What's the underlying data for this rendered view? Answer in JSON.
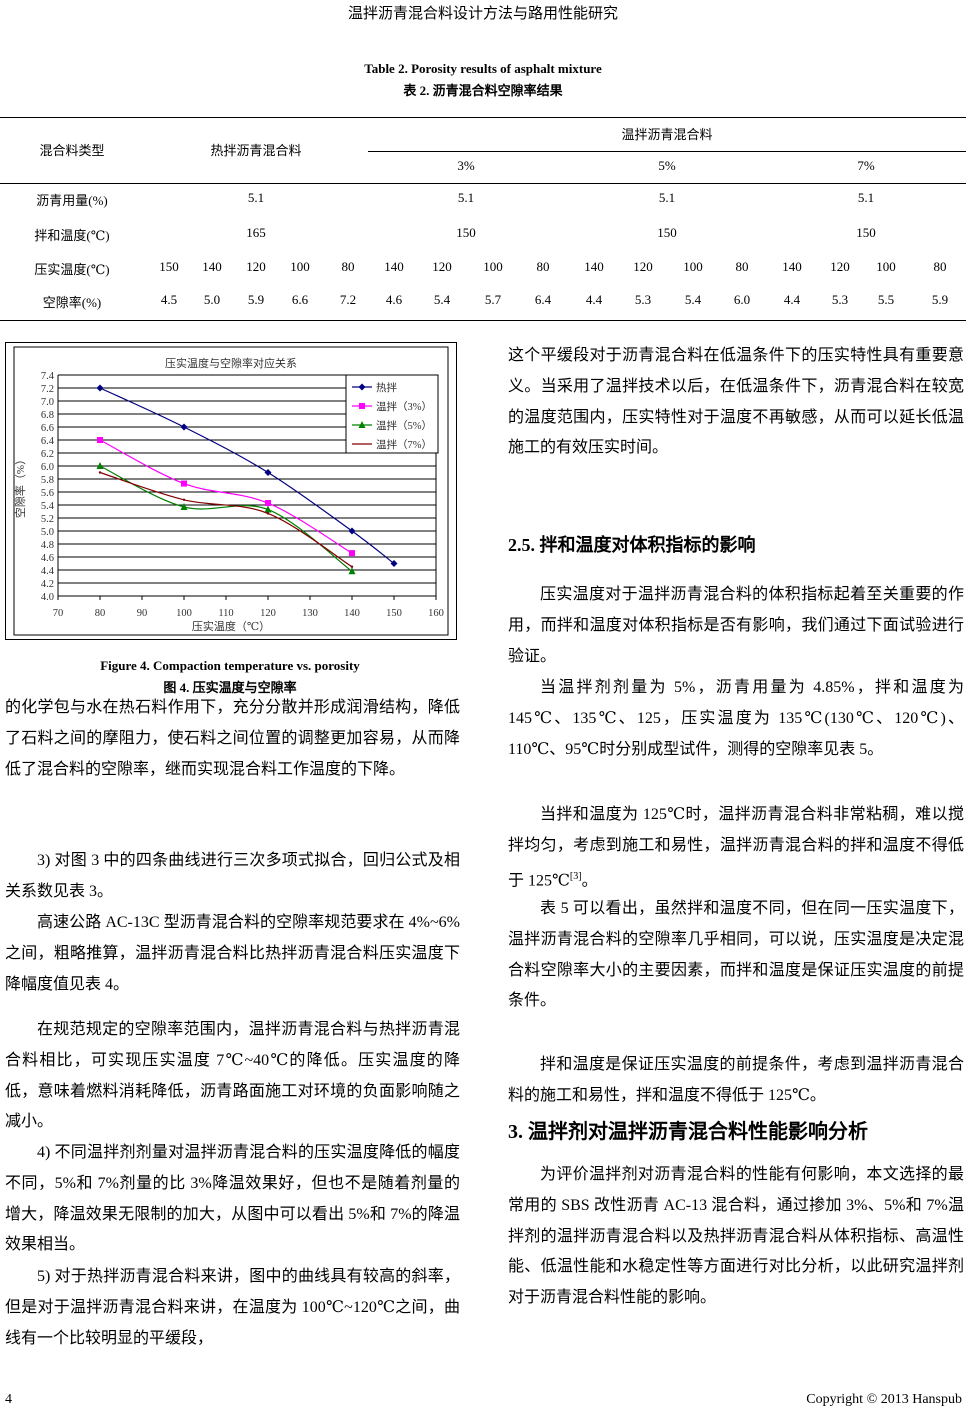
{
  "running_head": "温拌沥青混合料设计方法与路用性能研究",
  "table": {
    "caption_en": "Table 2. Porosity results of asphalt mixture",
    "caption_zh": "表 2.  沥青混合料空隙率结果",
    "header": {
      "type_label": "混合料类型",
      "hot_label": "热拌沥青混合料",
      "warm_label": "温拌沥青混合料",
      "warm_doses": [
        "3%",
        "5%",
        "7%"
      ]
    },
    "rows": {
      "asphalt": {
        "label": "沥青用量(%)",
        "values": [
          "5.1",
          "5.1",
          "5.1",
          "5.1"
        ]
      },
      "mix_temp": {
        "label": "拌和温度(℃)",
        "values": [
          "165",
          "150",
          "150",
          "150"
        ]
      },
      "compact_temp": {
        "label": "压实温度(℃)",
        "values": [
          "150",
          "140",
          "120",
          "100",
          "80",
          "140",
          "120",
          "100",
          "80",
          "140",
          "120",
          "100",
          "80",
          "140",
          "120",
          "100",
          "80"
        ]
      },
      "porosity": {
        "label": "空隙率(%)",
        "values": [
          "4.5",
          "5.0",
          "5.9",
          "6.6",
          "7.2",
          "4.6",
          "5.4",
          "5.7",
          "6.4",
          "4.4",
          "5.3",
          "5.4",
          "6.0",
          "4.4",
          "5.3",
          "5.5",
          "5.9"
        ]
      }
    }
  },
  "chart_data": {
    "type": "line",
    "title": "压实温度与空隙率对应关系",
    "xlabel": "压实温度（℃）",
    "ylabel": "空隙率（%）",
    "xlim": [
      70,
      160
    ],
    "ylim": [
      4.0,
      7.4
    ],
    "xticks": [
      "70",
      "80",
      "90",
      "100",
      "110",
      "120",
      "130",
      "140",
      "150",
      "160"
    ],
    "yticks": [
      "4.0",
      "4.2",
      "4.4",
      "4.6",
      "4.8",
      "5.0",
      "5.2",
      "5.4",
      "5.6",
      "5.8",
      "6.0",
      "6.2",
      "6.4",
      "6.6",
      "6.8",
      "7.0",
      "7.2",
      "7.4"
    ],
    "grid": "horizontal",
    "legend_position": "top-right",
    "series": [
      {
        "name": "热拌",
        "color": "#000080",
        "marker": "diamond",
        "x": [
          80,
          100,
          120,
          140,
          150
        ],
        "y": [
          7.2,
          6.6,
          5.9,
          5.0,
          4.5
        ]
      },
      {
        "name": "温拌（3%）",
        "color": "#ff00ff",
        "marker": "square",
        "x": [
          80,
          100,
          120,
          140
        ],
        "y": [
          6.4,
          5.73,
          5.43,
          4.66
        ]
      },
      {
        "name": "温拌（5%）",
        "color": "#008000",
        "marker": "triangle",
        "x": [
          80,
          100,
          120,
          140
        ],
        "y": [
          6.0,
          5.37,
          5.33,
          4.38
        ]
      },
      {
        "name": "温拌（7%）",
        "color": "#800000",
        "marker": "none",
        "x": [
          80,
          100,
          120,
          140
        ],
        "y": [
          5.9,
          5.48,
          5.27,
          4.45
        ]
      }
    ]
  },
  "figure": {
    "caption_en": "Figure 4. Compaction temperature vs. porosity",
    "caption_zh": "图 4.  压实温度与空隙率"
  },
  "left_column": [
    "的化学包与水在热石料作用下，充分分散并形成润滑结构，降低了石料之间的摩阻力，使石料之间位置的调整更加容易，从而降低了混合料的空隙率，继而实现混合料工作温度的下降。",
    "3)  对图 3 中的四条曲线进行三次多项式拟合，回归公式及相关系数见表 3。",
    "高速公路 AC-13C 型沥青混合料的空隙率规范要求在  4%~6%之间，粗略推算，温拌沥青混合料比热拌沥青混合料压实温度下降幅度值见表 4。",
    "在规范规定的空隙率范围内，温拌沥青混合料与热拌沥青混合料相比，可实现压实温度 7℃~40℃的降低。压实温度的降低，意味着燃料消耗降低，沥青路面施工对环境的负面影响随之减小。",
    "4)  不同温拌剂剂量对温拌沥青混合料的压实温度降低的幅度不同，5%和  7%剂量的比  3%降温效果好，但也不是随着剂量的增大，降温效果无限制的加大，从图中可以看出 5%和 7%的降温效果相当。",
    "5)  对于热拌沥青混合料来讲，图中的曲线具有较高的斜率，但是对于温拌沥青混合料来讲，在温度为 100℃~120℃之间，曲线有一个比较明显的平缓段，"
  ],
  "right_column": {
    "p0": "这个平缓段对于沥青混合料在低温条件下的压实特性具有重要意义。当采用了温拌技术以后，在低温条件下，沥青混合料在较宽的温度范围内，压实特性对于温度不再敏感，从而可以延长低温施工的有效压实时间。",
    "heading_25": "2.5.  拌和温度对体积指标的影响",
    "p1": "压实温度对于温拌沥青混合料的体积指标起着至关重要的作用，而拌和温度对体积指标是否有影响，我们通过下面试验进行验证。",
    "p2": "当温拌剂剂量为 5%，沥青用量为 4.85%，拌和温度为 145℃、135℃、125，压实温度为 135℃(130℃、120℃)、110℃、95℃时分别成型试件，测得的空隙率见表 5。",
    "p3": "当拌和温度为  125℃时，温拌沥青混合料非常粘稠，难以搅拌均匀，考虑到施工和易性，温拌沥青混合料的拌和温度不得低于 125℃",
    "p3_ref": "[3]",
    "p3_end": "。",
    "p4": "表 5 可以看出，虽然拌和温度不同，但在同一压实温度下，温拌沥青混合料的空隙率几乎相同，可以说，压实温度是决定混合料空隙率大小的主要因素，而拌和温度是保证压实温度的前提条件。",
    "p5": "拌和温度是保证压实温度的前提条件，考虑到温拌沥青混合料的施工和易性，拌和温度不得低于 125℃。",
    "heading_3": "3.  温拌剂对温拌沥青混合料性能影响分析",
    "p6": "为评价温拌剂对沥青混合料的性能有何影响，本文选择的最常用的  SBS  改性沥青  AC-13  混合料，通过掺加  3%、5%和  7%温拌剂的温拌沥青混合料以及热拌沥青混合料从体积指标、高温性能、低温性能和水稳定性等方面进行对比分析，以此研究温拌剂对于沥青混合料性能的影响。"
  },
  "footer": {
    "page_number": "4",
    "copyright": "Copyright © 2013 Hanspub"
  }
}
